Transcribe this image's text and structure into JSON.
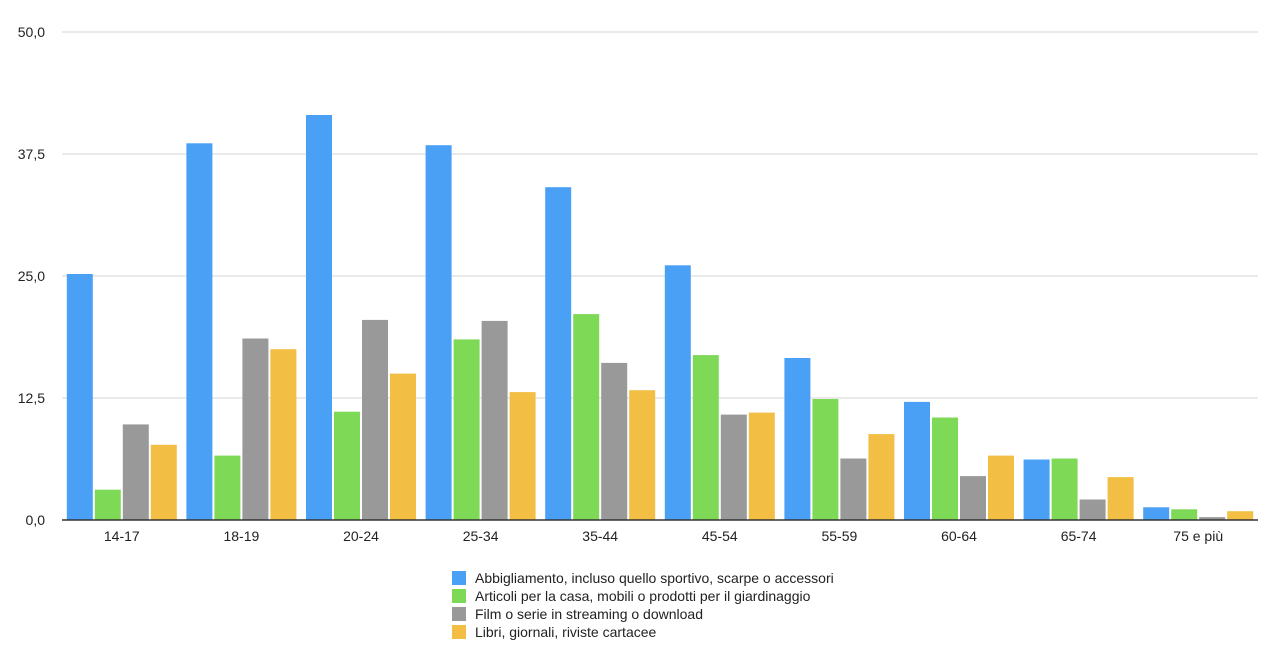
{
  "chart_data": {
    "type": "bar",
    "categories": [
      "14-17",
      "18-19",
      "20-24",
      "25-34",
      "35-44",
      "45-54",
      "55-59",
      "60-64",
      "65-74",
      "75 e più"
    ],
    "series": [
      {
        "name": "Abbigliamento, incluso quello sportivo, scarpe o accessori",
        "color": "#4aa0f5",
        "values": [
          25.2,
          38.6,
          41.5,
          38.4,
          34.1,
          26.1,
          16.6,
          12.1,
          6.2,
          1.3
        ]
      },
      {
        "name": "Articoli per la casa, mobili o prodotti per il giardinaggio",
        "color": "#7ed957",
        "values": [
          3.1,
          6.6,
          11.1,
          18.5,
          21.1,
          16.9,
          12.4,
          10.5,
          6.3,
          1.1
        ]
      },
      {
        "name": "Film o serie in streaming o download",
        "color": "#999999",
        "values": [
          9.8,
          18.6,
          20.5,
          20.4,
          16.1,
          10.8,
          6.3,
          4.5,
          2.1,
          0.3
        ]
      },
      {
        "name": "Libri, giornali, riviste cartacee",
        "color": "#f2bf44",
        "values": [
          7.7,
          17.5,
          15.0,
          13.1,
          13.3,
          11.0,
          8.8,
          6.6,
          4.4,
          0.9
        ]
      }
    ],
    "yticks": [
      "0,0",
      "12,5",
      "25,0",
      "37,5",
      "50,0"
    ],
    "ytick_values": [
      0,
      12.5,
      25,
      37.5,
      50
    ],
    "ylim": [
      0,
      50
    ],
    "grid": true,
    "legend_position": "bottom"
  }
}
